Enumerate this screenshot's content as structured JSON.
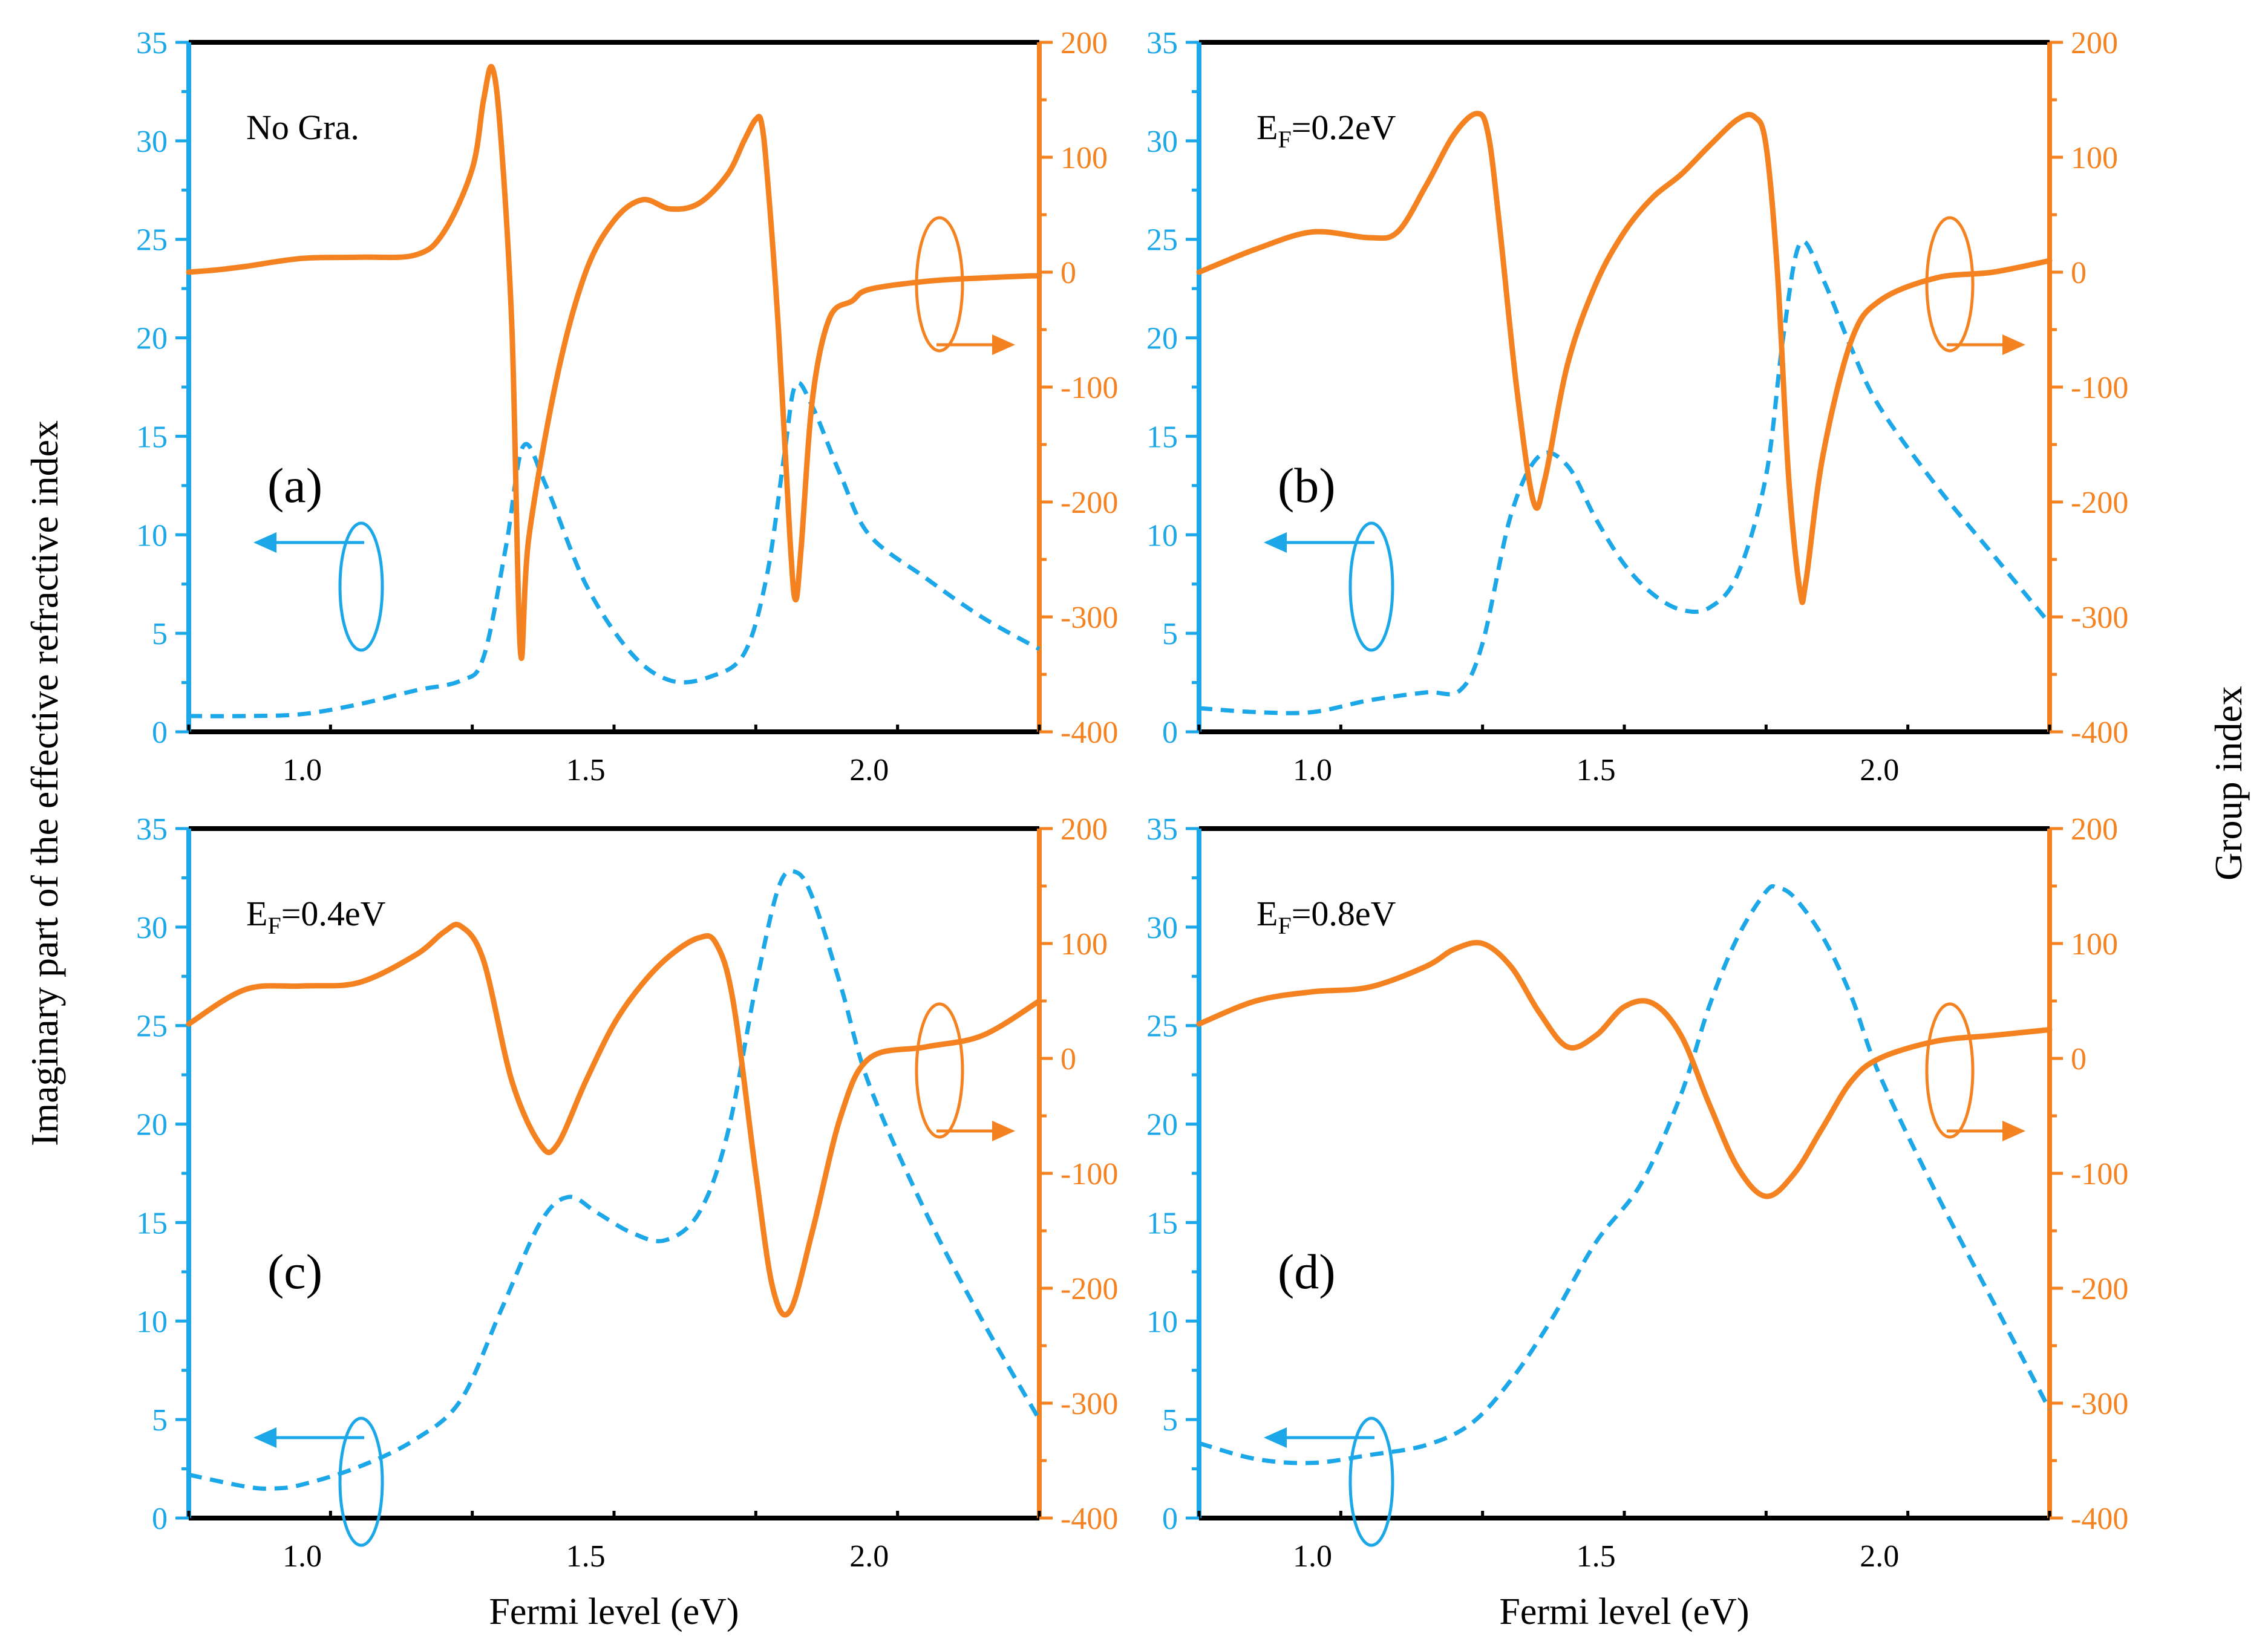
{
  "figure": {
    "ylabel_left": "Imaginary part of the effective refractive index",
    "ylabel_right": "Group index",
    "colors": {
      "blue": "#1CA8E8",
      "orange": "#F58220",
      "axis": "#000000"
    }
  },
  "chart_data": [
    {
      "type": "line",
      "panel": "(a)",
      "annotation": "No Gra.",
      "xlabel": "",
      "ylabel_left": "",
      "ylabel_right": "",
      "xlim": [
        0.8,
        2.3
      ],
      "ylim_left": [
        0,
        35
      ],
      "ylim_right": [
        -400,
        200
      ],
      "xticks": [
        "1.0",
        "1.5",
        "2.0"
      ],
      "yticks_left": [
        "0",
        "5",
        "10",
        "15",
        "20",
        "25",
        "30",
        "35"
      ],
      "yticks_right": [
        "-400",
        "-300",
        "-200",
        "-100",
        "0",
        "100",
        "200"
      ],
      "series": [
        {
          "name": "Imaginary part of the effective refractive index",
          "axis": "left",
          "style": "dashed",
          "x": [
            0.8,
            0.9,
            1.0,
            1.1,
            1.2,
            1.28,
            1.32,
            1.36,
            1.39,
            1.43,
            1.5,
            1.58,
            1.65,
            1.72,
            1.78,
            1.82,
            1.85,
            1.87,
            1.9,
            1.95,
            2.0,
            2.1,
            2.2,
            2.3
          ],
          "y": [
            0.8,
            0.8,
            0.9,
            1.4,
            2.1,
            2.6,
            3.8,
            9.5,
            14.5,
            12.5,
            7.5,
            4.0,
            2.6,
            2.8,
            4.0,
            8.0,
            14.0,
            17.6,
            16.5,
            13.0,
            10.0,
            7.8,
            5.8,
            4.2
          ]
        },
        {
          "name": "Group index",
          "axis": "right",
          "style": "solid",
          "x": [
            0.8,
            0.85,
            0.9,
            1.0,
            1.1,
            1.2,
            1.25,
            1.3,
            1.32,
            1.335,
            1.35,
            1.37,
            1.385,
            1.4,
            1.45,
            1.5,
            1.55,
            1.6,
            1.65,
            1.7,
            1.75,
            1.78,
            1.8,
            1.81,
            1.82,
            1.84,
            1.86,
            1.87,
            1.88,
            1.9,
            1.93,
            1.97,
            2.0,
            2.1,
            2.2,
            2.3
          ],
          "y": [
            0,
            2,
            5,
            12,
            13,
            15,
            35,
            90,
            150,
            178,
            120,
            -50,
            -330,
            -230,
            -90,
            0,
            45,
            63,
            55,
            60,
            85,
            115,
            133,
            130,
            85,
            -50,
            -230,
            -285,
            -240,
            -110,
            -40,
            -25,
            -15,
            -8,
            -5,
            -3
          ]
        }
      ]
    },
    {
      "type": "line",
      "panel": "(b)",
      "annotation": "E_F=0.2eV",
      "xlabel": "",
      "ylabel_left": "",
      "ylabel_right": "",
      "xlim": [
        0.8,
        2.3
      ],
      "ylim_left": [
        0,
        35
      ],
      "ylim_right": [
        -400,
        200
      ],
      "xticks": [
        "1.0",
        "1.5",
        "2.0"
      ],
      "yticks_left": [
        "0",
        "5",
        "10",
        "15",
        "20",
        "25",
        "30",
        "35"
      ],
      "yticks_right": [
        "-400",
        "-300",
        "-200",
        "-100",
        "0",
        "100",
        "200"
      ],
      "series": [
        {
          "name": "Imaginary part of the effective refractive index",
          "axis": "left",
          "style": "dashed",
          "x": [
            0.8,
            0.9,
            1.0,
            1.1,
            1.2,
            1.26,
            1.3,
            1.35,
            1.4,
            1.45,
            1.5,
            1.55,
            1.6,
            1.65,
            1.7,
            1.75,
            1.8,
            1.83,
            1.86,
            1.9,
            1.95,
            2.0,
            2.1,
            2.2,
            2.3
          ],
          "y": [
            1.2,
            1.0,
            1.0,
            1.6,
            2.0,
            2.1,
            4.5,
            11.0,
            14.0,
            13.5,
            10.8,
            8.5,
            7.0,
            6.2,
            6.3,
            8.0,
            13.0,
            20.0,
            24.8,
            23.0,
            19.5,
            16.5,
            12.5,
            9.0,
            5.5
          ]
        },
        {
          "name": "Group index",
          "axis": "right",
          "style": "solid",
          "x": [
            0.8,
            0.9,
            1.0,
            1.1,
            1.15,
            1.2,
            1.25,
            1.29,
            1.31,
            1.33,
            1.36,
            1.39,
            1.41,
            1.45,
            1.5,
            1.55,
            1.6,
            1.65,
            1.7,
            1.75,
            1.78,
            1.8,
            1.82,
            1.84,
            1.86,
            1.87,
            1.9,
            1.95,
            2.0,
            2.1,
            2.2,
            2.3
          ],
          "y": [
            0,
            20,
            35,
            30,
            35,
            75,
            120,
            138,
            120,
            40,
            -100,
            -200,
            -180,
            -80,
            -10,
            35,
            65,
            85,
            110,
            133,
            135,
            110,
            0,
            -180,
            -278,
            -270,
            -160,
            -60,
            -25,
            -5,
            0,
            10
          ]
        }
      ]
    },
    {
      "type": "line",
      "panel": "(c)",
      "annotation": "E_F=0.4eV",
      "xlabel": "Fermi level (eV)",
      "ylabel_left": "",
      "ylabel_right": "",
      "xlim": [
        0.8,
        2.3
      ],
      "ylim_left": [
        0,
        35
      ],
      "ylim_right": [
        -400,
        200
      ],
      "xticks": [
        "1.0",
        "1.5",
        "2.0"
      ],
      "yticks_left": [
        "0",
        "5",
        "10",
        "15",
        "20",
        "25",
        "30",
        "35"
      ],
      "yticks_right": [
        "-400",
        "-300",
        "-200",
        "-100",
        "0",
        "100",
        "200"
      ],
      "series": [
        {
          "name": "Imaginary part of the effective refractive index",
          "axis": "left",
          "style": "dashed",
          "x": [
            0.8,
            0.9,
            0.95,
            1.0,
            1.1,
            1.2,
            1.28,
            1.35,
            1.42,
            1.47,
            1.52,
            1.58,
            1.64,
            1.7,
            1.75,
            1.8,
            1.84,
            1.87,
            1.9,
            1.95,
            2.0,
            2.1,
            2.2,
            2.3
          ],
          "y": [
            2.2,
            1.6,
            1.5,
            1.7,
            2.6,
            4.0,
            6.0,
            10.5,
            15.0,
            16.3,
            15.5,
            14.5,
            14.1,
            15.5,
            19.5,
            27.0,
            32.0,
            32.8,
            31.5,
            27.0,
            22.0,
            15.5,
            10.0,
            5.0
          ]
        },
        {
          "name": "Group index",
          "axis": "right",
          "style": "solid",
          "x": [
            0.8,
            0.9,
            1.0,
            1.1,
            1.2,
            1.25,
            1.28,
            1.32,
            1.37,
            1.42,
            1.45,
            1.5,
            1.55,
            1.6,
            1.65,
            1.7,
            1.73,
            1.76,
            1.8,
            1.83,
            1.86,
            1.9,
            1.95,
            2.0,
            2.1,
            2.2,
            2.3
          ],
          "y": [
            30,
            60,
            63,
            66,
            90,
            110,
            115,
            85,
            -20,
            -75,
            -75,
            -20,
            30,
            65,
            90,
            105,
            100,
            50,
            -100,
            -200,
            -220,
            -150,
            -50,
            0,
            10,
            20,
            50
          ]
        }
      ]
    },
    {
      "type": "line",
      "panel": "(d)",
      "annotation": "E_F=0.8eV",
      "xlabel": "Fermi level (eV)",
      "ylabel_left": "",
      "ylabel_right": "",
      "xlim": [
        0.8,
        2.3
      ],
      "ylim_left": [
        0,
        35
      ],
      "ylim_right": [
        -400,
        200
      ],
      "xticks": [
        "1.0",
        "1.5",
        "2.0"
      ],
      "yticks_left": [
        "0",
        "5",
        "10",
        "15",
        "20",
        "25",
        "30",
        "35"
      ],
      "yticks_right": [
        "-400",
        "-300",
        "-200",
        "-100",
        "0",
        "100",
        "200"
      ],
      "series": [
        {
          "name": "Imaginary part of the effective refractive index",
          "axis": "left",
          "style": "dashed",
          "x": [
            0.8,
            0.9,
            1.0,
            1.1,
            1.2,
            1.28,
            1.35,
            1.42,
            1.5,
            1.58,
            1.65,
            1.7,
            1.75,
            1.8,
            1.82,
            1.85,
            1.9,
            1.95,
            2.0,
            2.1,
            2.2,
            2.3
          ],
          "y": [
            3.8,
            3.0,
            2.8,
            3.2,
            3.7,
            4.8,
            7.0,
            10.0,
            14.0,
            17.0,
            21.5,
            26.0,
            29.5,
            31.8,
            32.0,
            31.5,
            29.5,
            26.5,
            22.5,
            16.5,
            11.0,
            5.5
          ]
        },
        {
          "name": "Group index",
          "axis": "right",
          "style": "solid",
          "x": [
            0.8,
            0.9,
            1.0,
            1.1,
            1.2,
            1.25,
            1.3,
            1.35,
            1.4,
            1.45,
            1.5,
            1.55,
            1.6,
            1.65,
            1.7,
            1.75,
            1.8,
            1.85,
            1.9,
            1.95,
            2.0,
            2.1,
            2.2,
            2.3
          ],
          "y": [
            30,
            50,
            58,
            62,
            80,
            95,
            100,
            80,
            40,
            10,
            20,
            45,
            48,
            20,
            -40,
            -95,
            -120,
            -100,
            -60,
            -20,
            0,
            15,
            20,
            25
          ]
        }
      ]
    }
  ]
}
